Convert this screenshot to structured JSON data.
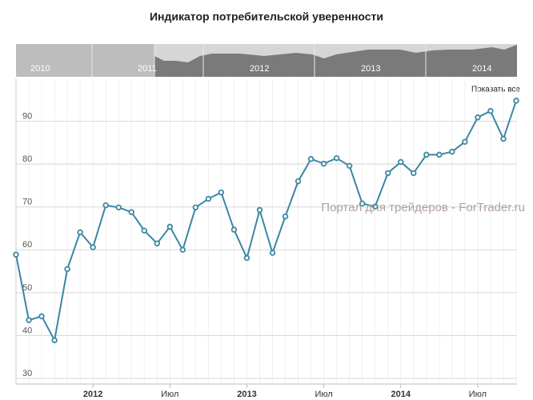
{
  "chart_data": {
    "type": "line",
    "title": "Индикатор потребительской уверенности",
    "watermark": "Портал для трейдеров - ForTrader.ru",
    "reset_button": "Показать все",
    "navigator_labels": [
      "2010",
      "2011",
      "2012",
      "2013",
      "2014"
    ],
    "categories": [
      null,
      null,
      null,
      null,
      null,
      null,
      "2012",
      null,
      null,
      null,
      null,
      null,
      "Июл",
      null,
      null,
      null,
      null,
      null,
      "2013",
      null,
      null,
      null,
      null,
      null,
      "Июл",
      null,
      null,
      null,
      null,
      null,
      "2014",
      null,
      null,
      null,
      null,
      null,
      "Июл",
      null,
      null,
      null
    ],
    "series": [
      {
        "name": "Индикатор потребительской уверенности",
        "color": "#3a87a3",
        "values": [
          58.9,
          43.6,
          44.5,
          38.9,
          55.5,
          64.1,
          60.6,
          70.4,
          69.9,
          68.8,
          64.5,
          61.5,
          65.4,
          60.0,
          69.9,
          71.9,
          73.4,
          64.7,
          58.1,
          69.3,
          59.3,
          67.8,
          76.0,
          81.2,
          80.1,
          81.4,
          79.6,
          70.8,
          70.1,
          77.9,
          80.5,
          77.9,
          82.2,
          82.2,
          82.9,
          85.2,
          90.9,
          92.4,
          85.9,
          94.8
        ]
      }
    ],
    "ylim": [
      28.7,
      100
    ],
    "yticks": [
      30,
      40,
      50,
      60,
      70,
      80,
      90
    ],
    "grid": true
  }
}
